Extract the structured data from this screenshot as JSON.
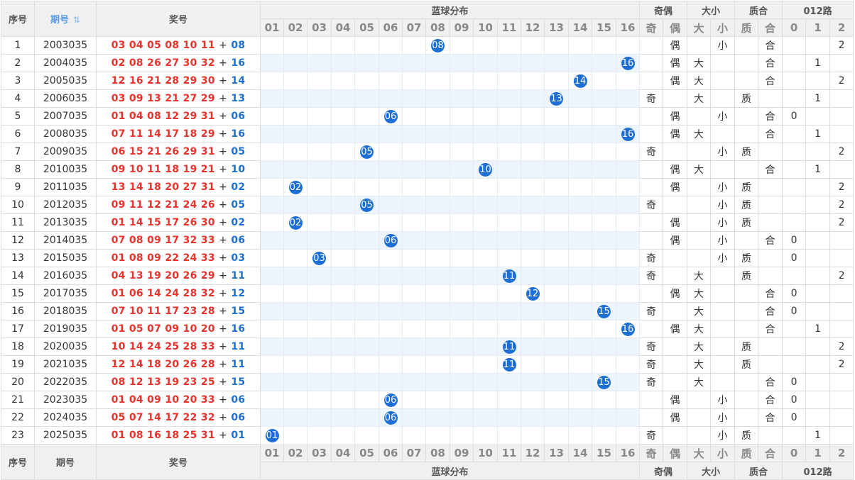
{
  "header": {
    "seq": "序号",
    "period": "期号",
    "sort_icon": "⇅",
    "draw": "奖号",
    "blue_dist": "蓝球分布",
    "odd_even": "奇偶",
    "big_small": "大小",
    "prime_comp": "质合",
    "route": "012路",
    "blue_cols": [
      "01",
      "02",
      "03",
      "04",
      "05",
      "06",
      "07",
      "08",
      "09",
      "10",
      "11",
      "12",
      "13",
      "14",
      "15",
      "16"
    ],
    "oe_cols": [
      "奇",
      "偶"
    ],
    "bs_cols": [
      "大",
      "小"
    ],
    "pc_cols": [
      "质",
      "合"
    ],
    "route_cols": [
      "0",
      "1",
      "2"
    ]
  },
  "footer": {
    "seq": "序号",
    "period": "期号",
    "draw": "奖号",
    "blue_dist": "蓝球分布",
    "odd_even": "奇偶",
    "big_small": "大小",
    "prime_comp": "质合",
    "route": "012路"
  },
  "rows": [
    {
      "seq": "1",
      "period": "2003035",
      "reds": "03 04 05 08 10 11",
      "plus": "+",
      "blue": "08",
      "bnum": 8,
      "oe": "偶",
      "bs": "小",
      "pc": "合",
      "route": "2"
    },
    {
      "seq": "2",
      "period": "2004035",
      "reds": "02 08 26 27 30 32",
      "plus": "+",
      "blue": "16",
      "bnum": 16,
      "oe": "偶",
      "bs": "大",
      "pc": "合",
      "route": "1"
    },
    {
      "seq": "3",
      "period": "2005035",
      "reds": "12 16 21 28 29 30",
      "plus": "+",
      "blue": "14",
      "bnum": 14,
      "oe": "偶",
      "bs": "大",
      "pc": "合",
      "route": "2"
    },
    {
      "seq": "4",
      "period": "2006035",
      "reds": "03 09 13 21 27 29",
      "plus": "+",
      "blue": "13",
      "bnum": 13,
      "oe": "奇",
      "bs": "大",
      "pc": "质",
      "route": "1"
    },
    {
      "seq": "5",
      "period": "2007035",
      "reds": "01 04 08 12 29 31",
      "plus": "+",
      "blue": "06",
      "bnum": 6,
      "oe": "偶",
      "bs": "小",
      "pc": "合",
      "route": "0"
    },
    {
      "seq": "6",
      "period": "2008035",
      "reds": "07 11 14 17 18 29",
      "plus": "+",
      "blue": "16",
      "bnum": 16,
      "oe": "偶",
      "bs": "大",
      "pc": "合",
      "route": "1"
    },
    {
      "seq": "7",
      "period": "2009035",
      "reds": "06 15 21 26 29 31",
      "plus": "+",
      "blue": "05",
      "bnum": 5,
      "oe": "奇",
      "bs": "小",
      "pc": "质",
      "route": "2"
    },
    {
      "seq": "8",
      "period": "2010035",
      "reds": "09 10 11 18 19 21",
      "plus": "+",
      "blue": "10",
      "bnum": 10,
      "oe": "偶",
      "bs": "大",
      "pc": "合",
      "route": "1"
    },
    {
      "seq": "9",
      "period": "2011035",
      "reds": "13 14 18 20 27 31",
      "plus": "+",
      "blue": "02",
      "bnum": 2,
      "oe": "偶",
      "bs": "小",
      "pc": "质",
      "route": "2"
    },
    {
      "seq": "10",
      "period": "2012035",
      "reds": "09 11 12 21 24 26",
      "plus": "+",
      "blue": "05",
      "bnum": 5,
      "oe": "奇",
      "bs": "小",
      "pc": "质",
      "route": "2"
    },
    {
      "seq": "11",
      "period": "2013035",
      "reds": "01 14 15 17 26 30",
      "plus": "+",
      "blue": "02",
      "bnum": 2,
      "oe": "偶",
      "bs": "小",
      "pc": "质",
      "route": "2"
    },
    {
      "seq": "12",
      "period": "2014035",
      "reds": "07 08 09 17 32 33",
      "plus": "+",
      "blue": "06",
      "bnum": 6,
      "oe": "偶",
      "bs": "小",
      "pc": "合",
      "route": "0"
    },
    {
      "seq": "13",
      "period": "2015035",
      "reds": "01 08 09 22 24 33",
      "plus": "+",
      "blue": "03",
      "bnum": 3,
      "oe": "奇",
      "bs": "小",
      "pc": "质",
      "route": "0"
    },
    {
      "seq": "14",
      "period": "2016035",
      "reds": "04 13 19 20 26 29",
      "plus": "+",
      "blue": "11",
      "bnum": 11,
      "oe": "奇",
      "bs": "大",
      "pc": "质",
      "route": "2"
    },
    {
      "seq": "15",
      "period": "2017035",
      "reds": "01 06 14 24 28 32",
      "plus": "+",
      "blue": "12",
      "bnum": 12,
      "oe": "偶",
      "bs": "大",
      "pc": "合",
      "route": "0"
    },
    {
      "seq": "16",
      "period": "2018035",
      "reds": "07 10 11 17 23 28",
      "plus": "+",
      "blue": "15",
      "bnum": 15,
      "oe": "奇",
      "bs": "大",
      "pc": "合",
      "route": "0"
    },
    {
      "seq": "17",
      "period": "2019035",
      "reds": "01 05 07 09 10 20",
      "plus": "+",
      "blue": "16",
      "bnum": 16,
      "oe": "偶",
      "bs": "大",
      "pc": "合",
      "route": "1"
    },
    {
      "seq": "18",
      "period": "2020035",
      "reds": "10 14 24 25 28 33",
      "plus": "+",
      "blue": "11",
      "bnum": 11,
      "oe": "奇",
      "bs": "大",
      "pc": "质",
      "route": "2"
    },
    {
      "seq": "19",
      "period": "2021035",
      "reds": "12 14 18 20 26 28",
      "plus": "+",
      "blue": "11",
      "bnum": 11,
      "oe": "奇",
      "bs": "大",
      "pc": "质",
      "route": "2"
    },
    {
      "seq": "20",
      "period": "2022035",
      "reds": "08 12 13 19 23 25",
      "plus": "+",
      "blue": "15",
      "bnum": 15,
      "oe": "奇",
      "bs": "大",
      "pc": "合",
      "route": "0"
    },
    {
      "seq": "21",
      "period": "2023035",
      "reds": "01 04 09 10 20 33",
      "plus": "+",
      "blue": "06",
      "bnum": 6,
      "oe": "偶",
      "bs": "小",
      "pc": "合",
      "route": "0"
    },
    {
      "seq": "22",
      "period": "2024035",
      "reds": "05 07 14 17 22 32",
      "plus": "+",
      "blue": "06",
      "bnum": 6,
      "oe": "偶",
      "bs": "小",
      "pc": "合",
      "route": "0"
    },
    {
      "seq": "23",
      "period": "2025035",
      "reds": "01 08 16 18 25 31",
      "plus": "+",
      "blue": "01",
      "bnum": 1,
      "oe": "奇",
      "bs": "小",
      "pc": "质",
      "route": "1"
    }
  ],
  "colors": {
    "red_ball": "#e8322c",
    "blue_ball": "#1e6fd0",
    "ball_bg": "#1d6fd6",
    "header_bg": "#f0f0f0",
    "stripe": "#eef4fb"
  }
}
